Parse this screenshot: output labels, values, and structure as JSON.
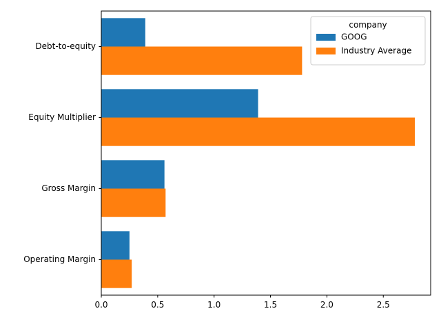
{
  "chart_data": {
    "type": "bar",
    "orientation": "horizontal",
    "categories": [
      "Debt-to-equity",
      "Equity Multiplier",
      "Gross Margin",
      "Operating Margin"
    ],
    "series": [
      {
        "name": "GOOG",
        "color": "#1f77b4",
        "values": [
          0.39,
          1.39,
          0.56,
          0.25
        ]
      },
      {
        "name": "Industry Average",
        "color": "#ff7f0e",
        "values": [
          1.78,
          2.78,
          0.57,
          0.27
        ]
      }
    ],
    "xlim": [
      0,
      2.92
    ],
    "xticks": [
      0.0,
      0.5,
      1.0,
      1.5,
      2.0,
      2.5
    ],
    "xtick_labels": [
      "0.0",
      "0.5",
      "1.0",
      "1.5",
      "2.0",
      "2.5"
    ],
    "grid": false,
    "legend": {
      "title": "company",
      "placement": "top-right"
    }
  }
}
